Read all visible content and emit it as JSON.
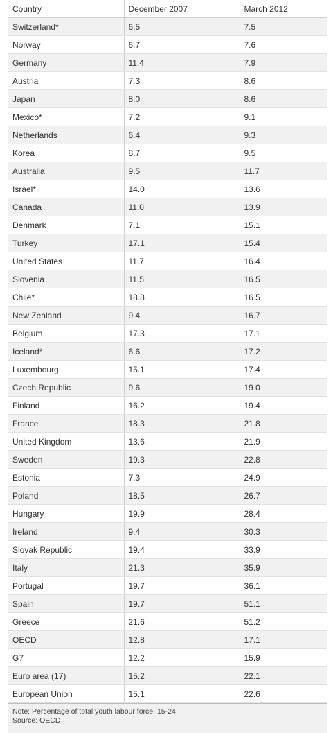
{
  "chart_data": {
    "type": "table",
    "columns": [
      "Country",
      "December 2007",
      "March 2012"
    ],
    "rows": [
      [
        "Switzerland*",
        "6.5",
        "7.5"
      ],
      [
        "Norway",
        "6.7",
        "7.6"
      ],
      [
        "Germany",
        "11.4",
        "7.9"
      ],
      [
        "Austria",
        "7.3",
        "8.6"
      ],
      [
        "Japan",
        "8.0",
        "8.6"
      ],
      [
        "Mexico*",
        "7.2",
        "9.1"
      ],
      [
        "Netherlands",
        "6.4",
        "9.3"
      ],
      [
        "Korea",
        "8.7",
        "9.5"
      ],
      [
        "Australia",
        "9.5",
        "11.7"
      ],
      [
        "Israel*",
        "14.0",
        "13.6"
      ],
      [
        "Canada",
        "11.0",
        "13.9"
      ],
      [
        "Denmark",
        "7.1",
        "15.1"
      ],
      [
        "Turkey",
        "17.1",
        "15.4"
      ],
      [
        "United States",
        "11.7",
        "16.4"
      ],
      [
        "Slovenia",
        "11.5",
        "16.5"
      ],
      [
        "Chile*",
        "18.8",
        "16.5"
      ],
      [
        "New Zealand",
        "9.4",
        "16.7"
      ],
      [
        "Belgium",
        "17.3",
        "17.1"
      ],
      [
        "Iceland*",
        "6.6",
        "17.2"
      ],
      [
        "Luxembourg",
        "15.1",
        "17.4"
      ],
      [
        "Czech Republic",
        "9.6",
        "19.0"
      ],
      [
        "Finland",
        "16.2",
        "19.4"
      ],
      [
        "France",
        "18.3",
        "21.8"
      ],
      [
        "United Kingdom",
        "13.6",
        "21.9"
      ],
      [
        "Sweden",
        "19.3",
        "22.8"
      ],
      [
        "Estonia",
        "7.3",
        "24.9"
      ],
      [
        "Poland",
        "18.5",
        "26.7"
      ],
      [
        "Hungary",
        "19.9",
        "28.4"
      ],
      [
        "Ireland",
        "9.4",
        "30.3"
      ],
      [
        "Slovak Republic",
        "19.4",
        "33.9"
      ],
      [
        "Italy",
        "21.3",
        "35.9"
      ],
      [
        "Portugal",
        "19.7",
        "36.1"
      ],
      [
        "Spain",
        "19.7",
        "51.1"
      ],
      [
        "Greece",
        "21.6",
        "51.2"
      ],
      [
        "OECD",
        "12.8",
        "17.1"
      ],
      [
        "G7",
        "12.2",
        "15.9"
      ],
      [
        "Euro area (17)",
        "15.2",
        "22.1"
      ],
      [
        "European Union",
        "15.1",
        "22.6"
      ]
    ],
    "note": "Note: Percentage of total youth labour force, 15-24",
    "source": "Source: OECD"
  }
}
